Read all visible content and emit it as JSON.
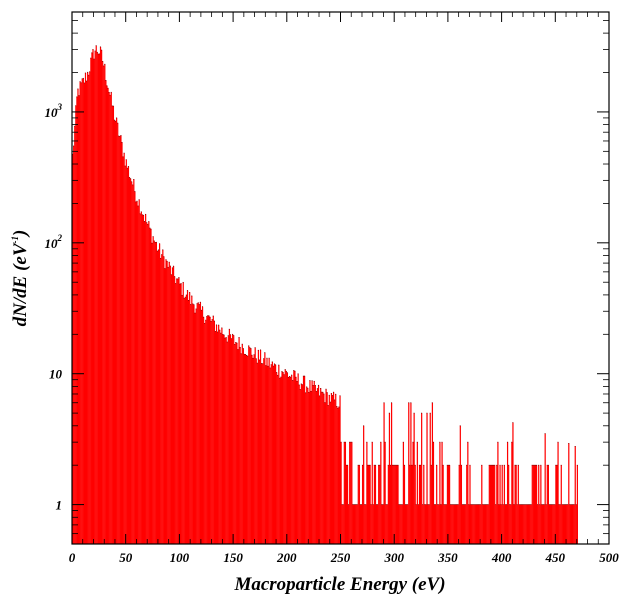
{
  "chart_data": {
    "type": "bar",
    "title": "",
    "xlabel": "Macroparticle Energy (eV)",
    "ylabel_parts": {
      "base": "dN/dE (eV",
      "exp": "-1",
      "close": ")"
    },
    "xlim": [
      0,
      500
    ],
    "ylim": [
      0.5,
      5800
    ],
    "yscale": "log",
    "grid": false,
    "legend": "none",
    "bar_color": "#ff0000",
    "edge_color": "#7a0000",
    "x_ticks": [
      0,
      50,
      100,
      150,
      200,
      250,
      300,
      350,
      400,
      450,
      500
    ],
    "x_tick_labels": [
      "0",
      "50",
      "100",
      "150",
      "200",
      "250",
      "300",
      "350",
      "400",
      "450",
      "500"
    ],
    "y_ticks": [
      {
        "value": 1,
        "base": "1",
        "exp": ""
      },
      {
        "value": 10,
        "base": "10",
        "exp": ""
      },
      {
        "value": 100,
        "base": "10",
        "exp": "2"
      },
      {
        "value": 1000,
        "base": "10",
        "exp": "3"
      }
    ],
    "bin_width_eV": 1,
    "envelope": {
      "x": [
        0,
        5,
        10,
        15,
        20,
        22,
        25,
        28,
        30,
        35,
        40,
        45,
        50,
        60,
        70,
        80,
        90,
        100,
        110,
        120,
        130,
        140,
        150,
        160,
        170,
        180,
        190,
        200,
        220,
        240,
        260,
        280,
        300,
        320,
        340,
        360,
        380,
        400,
        420,
        440,
        460,
        470
      ],
      "y": [
        400,
        1400,
        1650,
        2000,
        2800,
        3000,
        2950,
        2600,
        2200,
        1400,
        900,
        620,
        420,
        230,
        140,
        90,
        66,
        48,
        37,
        30,
        25,
        21,
        18,
        16,
        14,
        12.5,
        11,
        10,
        8,
        6.5,
        5.5,
        4.6,
        3.9,
        3.3,
        2.8,
        2.4,
        2.1,
        1.8,
        1.6,
        1.4,
        1.2,
        1.1
      ]
    },
    "noise_amplitude": 0.15,
    "last_bin_eV": 470
  }
}
